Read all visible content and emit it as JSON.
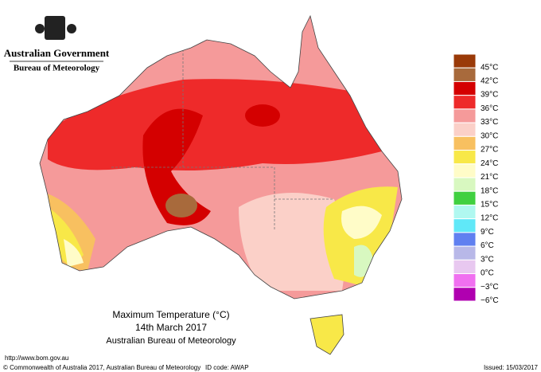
{
  "header": {
    "government": "Australian Government",
    "bureau": "Bureau of Meteorology"
  },
  "legend": [
    {
      "label": "45°C",
      "color": "#9a3a08"
    },
    {
      "label": "42°C",
      "color": "#a86a3c"
    },
    {
      "label": "39°C",
      "color": "#d40000"
    },
    {
      "label": "36°C",
      "color": "#ee2a2a"
    },
    {
      "label": "33°C",
      "color": "#f59a9a"
    },
    {
      "label": "30°C",
      "color": "#fbd0c8"
    },
    {
      "label": "27°C",
      "color": "#f8c060"
    },
    {
      "label": "24°C",
      "color": "#f8e848"
    },
    {
      "label": "21°C",
      "color": "#fffcc8"
    },
    {
      "label": "18°C",
      "color": "#d8f8c0"
    },
    {
      "label": "15°C",
      "color": "#40d040"
    },
    {
      "label": "12°C",
      "color": "#b0f8f0"
    },
    {
      "label": "9°C",
      "color": "#60e8f8"
    },
    {
      "label": "6°C",
      "color": "#6080f0"
    },
    {
      "label": "3°C",
      "color": "#b8b8e8"
    },
    {
      "label": "0°C",
      "color": "#e8c8f0"
    },
    {
      "label": "−3°C",
      "color": "#f070f0"
    },
    {
      "label": "−6°C",
      "color": "#b000b0"
    }
  ],
  "caption": {
    "title": "Maximum Temperature (°C)",
    "date": "14th March 2017",
    "source": "Australian Bureau of Meteorology"
  },
  "footer": {
    "url": "http://www.bom.gov.au",
    "copyright": "© Commonwealth of Australia 2017, Australian Bureau of Meteorology",
    "id": "ID code: AWAP",
    "issued": "Issued: 15/03/2017"
  }
}
